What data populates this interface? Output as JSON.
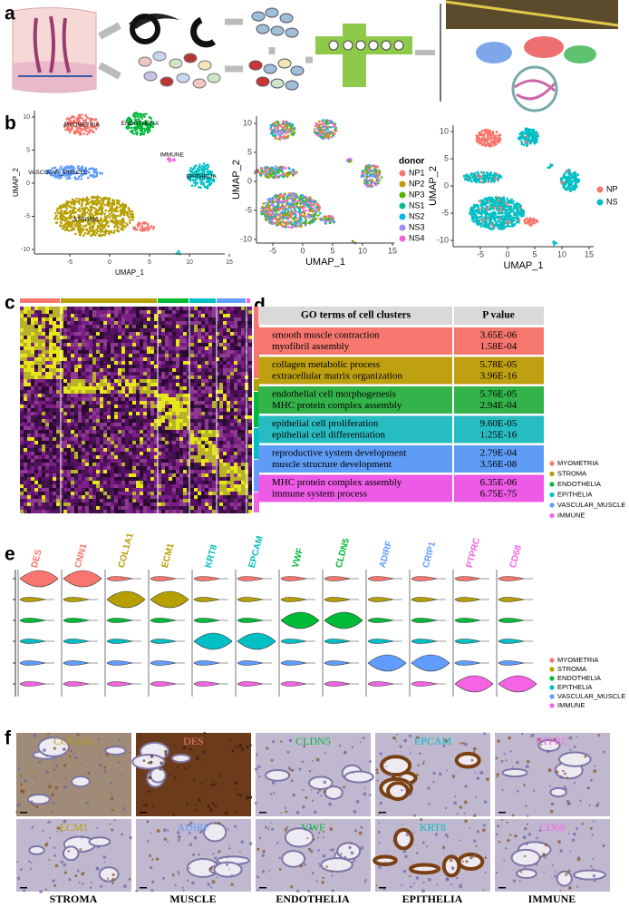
{
  "panels": {
    "a": {
      "label": "a"
    },
    "b": {
      "label": "b",
      "plots": [
        {
          "xlabel": "UMAP_1",
          "ylabel": "UMAP_2",
          "xticks": [
            "-5",
            "0",
            "5",
            "10",
            "15"
          ],
          "yticks": [
            "10",
            "5",
            "0",
            "-5",
            "-10"
          ],
          "clusters": [
            {
              "name": "MYOMETRIA",
              "color": "#f8766d"
            },
            {
              "name": "ENDOTHELIA",
              "color": "#00ba38"
            },
            {
              "name": "IMMUNE",
              "color": "#f564e3"
            },
            {
              "name": "VASCULAR_MUSCLE",
              "color": "#619cff"
            },
            {
              "name": "EPITHELIA",
              "color": "#00bfc4"
            },
            {
              "name": "STROMA",
              "color": "#b79f00"
            }
          ]
        },
        {
          "xlabel": "UMAP_1",
          "ylabel": "UMAP_2",
          "xticks": [
            "-5",
            "0",
            "5",
            "10",
            "15"
          ],
          "yticks": [
            "10",
            "5",
            "0",
            "-5",
            "-10"
          ],
          "legend_title": "donor",
          "legend": [
            {
              "name": "NP1",
              "color": "#f8766d"
            },
            {
              "name": "NP2",
              "color": "#c49a00"
            },
            {
              "name": "NP3",
              "color": "#53b400"
            },
            {
              "name": "NS1",
              "color": "#00c094"
            },
            {
              "name": "NS2",
              "color": "#00b6eb"
            },
            {
              "name": "NS3",
              "color": "#a58aff"
            },
            {
              "name": "NS4",
              "color": "#fb61d7"
            }
          ]
        },
        {
          "xlabel": "UMAP_1",
          "ylabel": "UMAP_2",
          "xticks": [
            "-5",
            "0",
            "5",
            "10",
            "15"
          ],
          "yticks": [
            "10",
            "5",
            "0",
            "-5",
            "-10"
          ],
          "legend": [
            {
              "name": "NP",
              "color": "#f8766d"
            },
            {
              "name": "NS",
              "color": "#00bfc4"
            }
          ]
        }
      ]
    },
    "c": {
      "label": "c"
    },
    "d": {
      "label": "d",
      "header": [
        "GO terms of cell clusters",
        "P value"
      ],
      "rows": [
        {
          "color": "#f5776e",
          "terms": [
            "smooth muscle contraction",
            "myofibril assembly"
          ],
          "pvalues": [
            "3.65E-06",
            "1.58E-04"
          ]
        },
        {
          "color": "#bfa010",
          "terms": [
            "collagen metabolic process",
            "extracellular matrix organization"
          ],
          "pvalues": [
            "5.78E-05",
            "3.96E-16"
          ]
        },
        {
          "color": "#33b34a",
          "terms": [
            "endothelial cell morphogenesis",
            "MHC protein complex assembly"
          ],
          "pvalues": [
            "5.76E-05",
            "2.94E-04"
          ]
        },
        {
          "color": "#27bcc1",
          "terms": [
            "epithelial cell proliferation",
            "epithelial cell differentiation"
          ],
          "pvalues": [
            "9.60E-05",
            "1.25E-16"
          ]
        },
        {
          "color": "#5f9cf5",
          "terms": [
            "reproductive system development",
            "muscle structure development"
          ],
          "pvalues": [
            "2.79E-04",
            "3.56E-08"
          ]
        },
        {
          "color": "#ec5ae6",
          "terms": [
            "MHC protein complex assembly",
            "immune system process"
          ],
          "pvalues": [
            "6.35E-06",
            "6.75E-75"
          ]
        }
      ],
      "legend": [
        {
          "name": "MYOMETRIA",
          "color": "#f8766d"
        },
        {
          "name": "STROMA",
          "color": "#b79f00"
        },
        {
          "name": "ENDOTHELIA",
          "color": "#00ba38"
        },
        {
          "name": "EPITHELIA",
          "color": "#00bfc4"
        },
        {
          "name": "VASCULAR_MUSCLE",
          "color": "#619cff"
        },
        {
          "name": "IMMUNE",
          "color": "#f564e3"
        }
      ]
    },
    "e": {
      "label": "e",
      "genes": [
        {
          "name": "DES",
          "color": "#f8766d"
        },
        {
          "name": "CNN1",
          "color": "#f8766d"
        },
        {
          "name": "COL1A1",
          "color": "#b79f00"
        },
        {
          "name": "ECM1",
          "color": "#b79f00"
        },
        {
          "name": "KRT8",
          "color": "#00bfc4"
        },
        {
          "name": "EPCAM",
          "color": "#00bfc4"
        },
        {
          "name": "VWF",
          "color": "#00ba38"
        },
        {
          "name": "CLDN5",
          "color": "#00ba38"
        },
        {
          "name": "ADIRF",
          "color": "#619cff"
        },
        {
          "name": "CRIP1",
          "color": "#619cff"
        },
        {
          "name": "PTPRC",
          "color": "#f564e3"
        },
        {
          "name": "CD68",
          "color": "#f564e3"
        }
      ],
      "legend": [
        {
          "name": "MYOMETRIA",
          "color": "#f8766d"
        },
        {
          "name": "STROMA",
          "color": "#b79f00"
        },
        {
          "name": "ENDOTHELIA",
          "color": "#00ba38"
        },
        {
          "name": "EPITHELIA",
          "color": "#00bfc4"
        },
        {
          "name": "VASCULAR_MUSCLE",
          "color": "#619cff"
        },
        {
          "name": "IMMUNE",
          "color": "#f564e3"
        }
      ]
    },
    "f": {
      "label": "f",
      "rows": [
        [
          {
            "gene": "COL1A1",
            "color": "#b79f00"
          },
          {
            "gene": "DES",
            "color": "#f8766d"
          },
          {
            "gene": "CLDN5",
            "color": "#00ba38"
          },
          {
            "gene": "EPCAM",
            "color": "#00bfc4"
          },
          {
            "gene": "PTPRC",
            "color": "#f564e3"
          }
        ],
        [
          {
            "gene": "ECM1",
            "color": "#b79f00"
          },
          {
            "gene": "ADIRF",
            "color": "#619cff"
          },
          {
            "gene": "VWF",
            "color": "#00ba38"
          },
          {
            "gene": "KRT8",
            "color": "#00bfc4"
          },
          {
            "gene": "CD68",
            "color": "#f564e3"
          }
        ]
      ],
      "tissues": [
        "STROMA",
        "MUSCLE",
        "ENDOTHELIA",
        "EPITHELIA",
        "IMMUNE"
      ]
    }
  }
}
